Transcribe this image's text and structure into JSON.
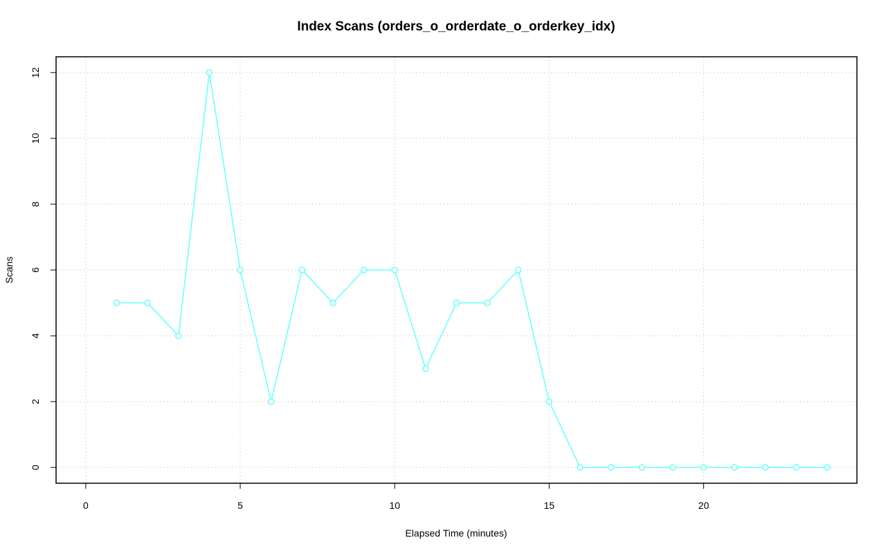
{
  "chart_data": {
    "type": "line",
    "title": "Index Scans (orders_o_orderdate_o_orderkey_idx)",
    "x_label": "Elapsed Time (minutes)",
    "y_label": "Scans",
    "x": [
      1,
      2,
      3,
      4,
      5,
      6,
      7,
      8,
      9,
      10,
      11,
      12,
      13,
      14,
      15,
      16,
      17,
      18,
      19,
      20,
      21,
      22,
      23,
      24
    ],
    "series": [
      {
        "color": "#66ffff",
        "values": [
          5,
          5,
          4,
          12,
          6,
          2,
          6,
          5,
          6,
          6,
          3,
          5,
          5,
          6,
          2,
          0,
          0,
          0,
          0,
          0,
          0,
          0,
          0,
          0
        ]
      }
    ],
    "xlim": [
      -0.96,
      24.96
    ],
    "xticks": [
      0,
      5,
      10,
      15,
      20
    ],
    "ylim": [
      -0.48,
      12.48
    ],
    "yticks": [
      0,
      2,
      4,
      6,
      8,
      10,
      12
    ],
    "grid": true
  }
}
